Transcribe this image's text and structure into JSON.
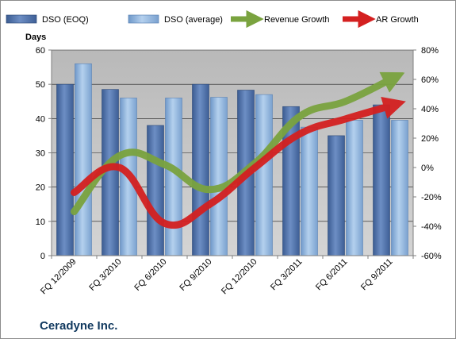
{
  "chart_data": {
    "type": "bar",
    "title": "",
    "footer": "Ceradyne Inc.",
    "y_left_label": "Days",
    "y_left_lim": [
      0,
      60
    ],
    "y_left_ticks": [
      "0",
      "10",
      "20",
      "30",
      "40",
      "50",
      "60"
    ],
    "y_right_lim": [
      -60,
      80
    ],
    "y_right_ticks": [
      "-60%",
      "-40%",
      "-20%",
      "0%",
      "20%",
      "40%",
      "60%",
      "80%"
    ],
    "categories": [
      "FQ 12/2009",
      "FQ 3/2010",
      "FQ 6/2010",
      "FQ 9/2010",
      "FQ 12/2010",
      "FQ 3/2011",
      "FQ 6/2011",
      "FQ 9/2011"
    ],
    "series": [
      {
        "name": "DSO (EOQ)",
        "type": "bar",
        "axis": "left",
        "values": [
          50,
          48.5,
          38,
          50,
          48.3,
          43.5,
          35,
          44
        ]
      },
      {
        "name": "DSO (average)",
        "type": "bar",
        "axis": "left",
        "values": [
          56,
          46,
          46,
          46.2,
          47,
          37.5,
          39.5,
          39.5
        ]
      },
      {
        "name": "Revenue Growth",
        "type": "line",
        "axis": "right",
        "unit": "%",
        "values": [
          -30,
          8,
          2,
          -15,
          3,
          35,
          45,
          60
        ]
      },
      {
        "name": "AR Growth",
        "type": "line",
        "axis": "right",
        "unit": "%",
        "values": [
          -17,
          0,
          -38,
          -25,
          0,
          23,
          33,
          42
        ]
      }
    ],
    "grid": true,
    "legend": "top",
    "colors": {
      "dso_eoq": "#4f6fa8",
      "dso_avg": "#8fb3dc",
      "revenue_growth": "#7aa33f",
      "ar_growth": "#d42020",
      "plot_bg": "#c0c0c0",
      "footer_text": "#10385e"
    }
  }
}
